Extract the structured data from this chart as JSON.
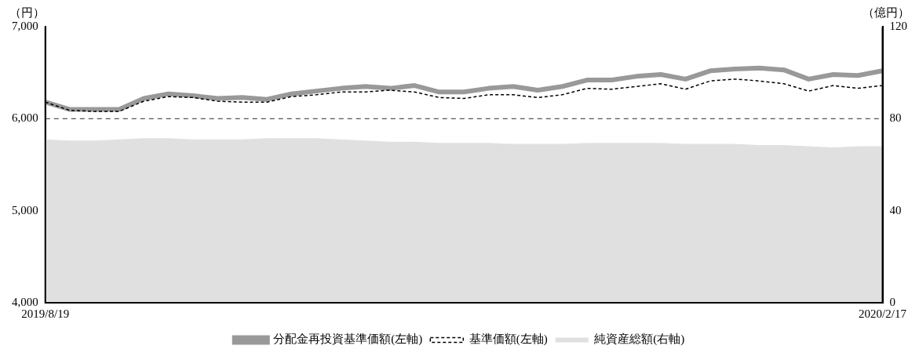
{
  "chart_data": {
    "type": "line",
    "ylabel": "（円）",
    "y2label": "（億円）",
    "categories": [
      "2019/8/19",
      null,
      null,
      null,
      null,
      null,
      null,
      null,
      null,
      null,
      null,
      null,
      null,
      null,
      null,
      null,
      null,
      null,
      null,
      null,
      null,
      null,
      null,
      null,
      null,
      null,
      null,
      null,
      null,
      null,
      null,
      null,
      null,
      null,
      "2020/2/17"
    ],
    "series": [
      {
        "name": "分配金再投資基準価額(左軸)",
        "color": "#999999",
        "line_style": "solid",
        "values": [
          6180,
          6100,
          6100,
          6100,
          6220,
          6270,
          6250,
          6220,
          6230,
          6210,
          6270,
          6300,
          6330,
          6350,
          6330,
          6360,
          6290,
          6290,
          6330,
          6350,
          6310,
          6350,
          6420,
          6420,
          6460,
          6480,
          6430,
          6520,
          6540,
          6550,
          6530,
          6430,
          6480,
          6470,
          6520
        ]
      },
      {
        "name": "基準価額(左軸)",
        "color": "#000000",
        "line_style": "dashed",
        "values": [
          6180,
          6090,
          6080,
          6080,
          6190,
          6240,
          6230,
          6190,
          6180,
          6180,
          6240,
          6260,
          6290,
          6290,
          6310,
          6290,
          6230,
          6220,
          6260,
          6260,
          6230,
          6260,
          6330,
          6320,
          6350,
          6380,
          6320,
          6410,
          6430,
          6410,
          6380,
          6300,
          6360,
          6330,
          6360
        ]
      },
      {
        "name": "純資産総額(右軸)",
        "type": "area",
        "axis": "y2",
        "color": "#e0e0e0",
        "values": [
          71,
          70.5,
          70.5,
          71,
          71.5,
          71.5,
          71,
          71,
          71,
          71.5,
          71.5,
          71.5,
          71,
          70.5,
          70,
          70,
          69.5,
          69.5,
          69.5,
          69,
          69,
          69,
          69.5,
          69.5,
          69.5,
          69.5,
          69,
          69,
          69,
          68.5,
          68.5,
          68,
          67.5,
          68,
          68
        ]
      }
    ],
    "ylim": [
      4000,
      7000
    ],
    "yticks": [
      {
        "value": 4000,
        "label": "4,000"
      },
      {
        "value": 5000,
        "label": "5,000"
      },
      {
        "value": 6000,
        "label": "6,000"
      },
      {
        "value": 7000,
        "label": "7,000"
      }
    ],
    "y2lim": [
      0,
      120
    ],
    "y2ticks": [
      0,
      40,
      80,
      120
    ],
    "ref_lines": [
      {
        "axis": "y",
        "value": 6000,
        "color": "#555555",
        "line_style": "dashed"
      }
    ],
    "grid": false,
    "legend": "bottom",
    "marker": "none"
  }
}
